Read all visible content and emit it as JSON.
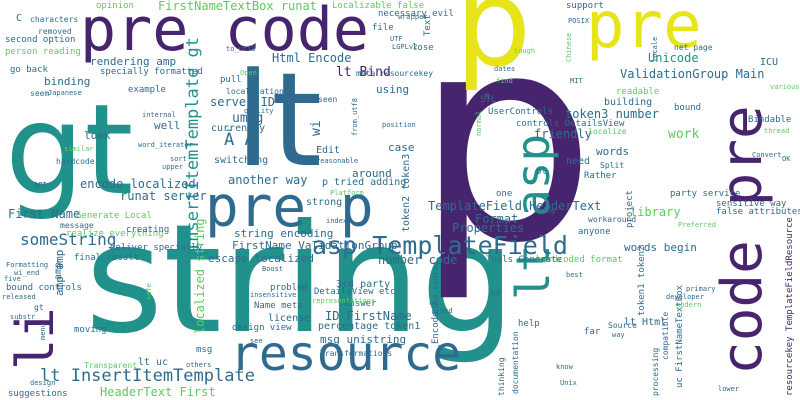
{
  "palette": {
    "purple": "#46256e",
    "teal": "#21918c",
    "blue": "#2f6b8e",
    "green": "#5ec962",
    "lime": "#b5de2b",
    "yellow": "#e8e41a",
    "navy": "#3b4f8a",
    "seafoam": "#2fb47c"
  },
  "words": [
    {
      "text": "string",
      "color": "#21918c"
    },
    {
      "text": "p",
      "color": "#46256e"
    },
    {
      "text": "gt",
      "color": "#21918c"
    },
    {
      "text": "lt",
      "color": "#2f6b8e"
    },
    {
      "text": "p",
      "color": "#e8e41a"
    },
    {
      "text": "pre code",
      "color": "#46256e"
    },
    {
      "text": "resource",
      "color": "#2f6b8e"
    },
    {
      "text": "pre",
      "color": "#e8e41a"
    },
    {
      "text": "pre p",
      "color": "#2f6b8e"
    },
    {
      "text": "code pre",
      "color": "#46256e"
    },
    {
      "text": "lt asp",
      "color": "#21918c"
    },
    {
      "text": "li",
      "color": "#46256e"
    },
    {
      "text": "asp TemplateField",
      "color": "#2f6b8e"
    },
    {
      "text": "lt InsertItemTemplate",
      "color": "#2f6b8e"
    },
    {
      "text": "InsertItemTemplate gt",
      "color": "#21918c"
    },
    {
      "text": "someString",
      "color": "#2f6b8e"
    },
    {
      "text": "FirstNameTextBox runat",
      "color": "#5ec962"
    },
    {
      "text": "Html Encode",
      "color": "#2f6b8e"
    },
    {
      "text": "lt Bind",
      "color": "#46256e"
    },
    {
      "text": "ValidationGroup Main",
      "color": "#2f6b8e"
    },
    {
      "text": "Unicode",
      "color": "#21918c"
    },
    {
      "text": "umsg",
      "color": "#2f6b8e"
    },
    {
      "text": "server ID",
      "color": "#2f6b8e"
    },
    {
      "text": "encode localized",
      "color": "#2f6b8e"
    },
    {
      "text": "runat server",
      "color": "#2f6b8e"
    },
    {
      "text": "another way",
      "color": "#2f6b8e"
    },
    {
      "text": "First Name",
      "color": "#2f6b8e"
    },
    {
      "text": "TemplateField HeaderText",
      "color": "#2f6b8e"
    },
    {
      "text": "Format",
      "color": "#2f6b8e"
    },
    {
      "text": "Properties",
      "color": "#2f6b8e"
    },
    {
      "text": "library",
      "color": "#5ec962"
    },
    {
      "text": "words begin",
      "color": "#2f6b8e"
    },
    {
      "text": "string encoding",
      "color": "#2f6b8e"
    },
    {
      "text": "FirstName ValidationGroup",
      "color": "#2f6b8e"
    },
    {
      "text": "escape localized",
      "color": "#2f6b8e"
    },
    {
      "text": "number code",
      "color": "#2f6b8e"
    },
    {
      "text": "ID FirstName",
      "color": "#2f6b8e"
    },
    {
      "text": "msg unistring",
      "color": "#2f6b8e"
    },
    {
      "text": "percentage token1",
      "color": "#2f6b8e"
    },
    {
      "text": "DetailsView etc",
      "color": "#2f6b8e"
    },
    {
      "text": "Name meta",
      "color": "#2f6b8e"
    },
    {
      "text": "license",
      "color": "#2f6b8e"
    },
    {
      "text": "design view",
      "color": "#2f6b8e"
    },
    {
      "text": "lt uc",
      "color": "#2f6b8e"
    },
    {
      "text": "HeaderText First",
      "color": "#5ec962"
    },
    {
      "text": "token3 number",
      "color": "#2f6b8e"
    },
    {
      "text": "friendly",
      "color": "#2f6b8e"
    },
    {
      "text": "work",
      "color": "#5ec962"
    },
    {
      "text": "words",
      "color": "#2f6b8e"
    },
    {
      "text": "need",
      "color": "#2f6b8e"
    },
    {
      "text": "Rather",
      "color": "#2f6b8e"
    },
    {
      "text": "case",
      "color": "#2f6b8e"
    },
    {
      "text": "Edit",
      "color": "#2f6b8e"
    },
    {
      "text": "around",
      "color": "#2f6b8e"
    },
    {
      "text": "look",
      "color": "#2f6b8e"
    },
    {
      "text": "well",
      "color": "#2f6b8e"
    },
    {
      "text": "binding",
      "color": "#2f6b8e"
    },
    {
      "text": "rendering amp",
      "color": "#2f6b8e"
    },
    {
      "text": "specially formatted",
      "color": "#2f6b8e"
    },
    {
      "text": "example",
      "color": "#2f6b8e"
    },
    {
      "text": "second option",
      "color": "#2f6b8e"
    },
    {
      "text": "person reading",
      "color": "#5ec962"
    },
    {
      "text": "go back",
      "color": "#2f6b8e"
    },
    {
      "text": "seem",
      "color": "#2f6b8e"
    },
    {
      "text": "removed",
      "color": "#2f6b8e"
    },
    {
      "text": "characters",
      "color": "#2f6b8e"
    },
    {
      "text": "opinion",
      "color": "#5ec962"
    },
    {
      "text": "Localizable false",
      "color": "#5ec962"
    },
    {
      "text": "necessary evil",
      "color": "#2f6b8e"
    },
    {
      "text": "support",
      "color": "#2f6b8e"
    },
    {
      "text": "file",
      "color": "#2f6b8e"
    },
    {
      "text": "lose",
      "color": "#2f6b8e"
    },
    {
      "text": "net page",
      "color": "#2f6b8e"
    },
    {
      "text": "ICU",
      "color": "#2f6b8e"
    },
    {
      "text": "using",
      "color": "#2f6b8e"
    },
    {
      "text": "STL",
      "color": "#2f6b8e"
    },
    {
      "text": "readable",
      "color": "#5ec962"
    },
    {
      "text": "building",
      "color": "#2f6b8e"
    },
    {
      "text": "bound",
      "color": "#2f6b8e"
    },
    {
      "text": "Bindable",
      "color": "#2f6b8e"
    },
    {
      "text": "UserControls",
      "color": "#2f6b8e"
    },
    {
      "text": "controls DetailsView",
      "color": "#2f6b8e"
    },
    {
      "text": "localize",
      "color": "#5ec962"
    },
    {
      "text": "currently",
      "color": "#2f6b8e"
    },
    {
      "text": "localization",
      "color": "#2f6b8e"
    },
    {
      "text": "switching",
      "color": "#2f6b8e"
    },
    {
      "text": "pull",
      "color": "#2f6b8e"
    },
    {
      "text": "meta resourcekey",
      "color": "#2f6b8e"
    },
    {
      "text": "Generate Local",
      "color": "#5ec962"
    },
    {
      "text": "realize everything",
      "color": "#5ec962"
    },
    {
      "text": "creating",
      "color": "#2f6b8e"
    },
    {
      "text": "deliver specially",
      "color": "#2f6b8e"
    },
    {
      "text": "final result",
      "color": "#2f6b8e"
    },
    {
      "text": "bound controls",
      "color": "#2f6b8e"
    },
    {
      "text": "message",
      "color": "#2f6b8e"
    },
    {
      "text": "p tried adding",
      "color": "#2f6b8e"
    },
    {
      "text": "strong",
      "color": "#2f6b8e"
    },
    {
      "text": "one",
      "color": "#2f6b8e"
    },
    {
      "text": "ol",
      "color": "#2f6b8e"
    },
    {
      "text": "Split",
      "color": "#2f6b8e"
    },
    {
      "text": "hardcoded format",
      "color": "#5ec962"
    },
    {
      "text": "Tools Generate",
      "color": "#2f6b8e"
    },
    {
      "text": "3rd party",
      "color": "#2f6b8e"
    },
    {
      "text": "problem",
      "color": "#2f6b8e"
    },
    {
      "text": "answer",
      "color": "#2f6b8e"
    },
    {
      "text": "moving",
      "color": "#2f6b8e"
    },
    {
      "text": "msg",
      "color": "#2f6b8e"
    },
    {
      "text": "help",
      "color": "#2f6b8e"
    },
    {
      "text": "hr",
      "color": "#2f6b8e"
    },
    {
      "text": "far",
      "color": "#2f6b8e"
    },
    {
      "text": "lt Html",
      "color": "#2f6b8e"
    },
    {
      "text": "uc FirstNameTextBox",
      "color": "#2f6b8e"
    },
    {
      "text": "token1 token2",
      "color": "#2f6b8e"
    },
    {
      "text": "resourcekey TemplateFieldResource",
      "color": "#46256e"
    },
    {
      "text": "party service",
      "color": "#2f6b8e"
    },
    {
      "text": "sensitive way",
      "color": "#2f6b8e"
    },
    {
      "text": "false attributes",
      "color": "#2f6b8e"
    },
    {
      "text": "anyone",
      "color": "#2f6b8e"
    },
    {
      "text": "workaround",
      "color": "#2f6b8e"
    },
    {
      "text": "project",
      "color": "#2f6b8e"
    },
    {
      "text": "token2 token3",
      "color": "#2f6b8e"
    },
    {
      "text": "Encode Ã",
      "color": "#2f6b8e"
    },
    {
      "text": "Ã Ã",
      "color": "#2f6b8e"
    },
    {
      "text": "Text",
      "color": "#2f6b8e"
    },
    {
      "text": "wi",
      "color": "#2f6b8e"
    },
    {
      "text": "localized string",
      "color": "#5ec962"
    },
    {
      "text": "amp amp",
      "color": "#2f6b8e"
    },
    {
      "text": "Bind syntax",
      "color": "#2f6b8e"
    },
    {
      "text": "suggestions",
      "color": "#2f6b8e"
    },
    {
      "text": "Transformations",
      "color": "#2f6b8e"
    },
    {
      "text": "Transparent",
      "color": "#5ec962"
    },
    {
      "text": "documentation",
      "color": "#2f6b8e"
    },
    {
      "text": "thinking",
      "color": "#2f6b8e"
    },
    {
      "text": "processing",
      "color": "#2f6b8e"
    },
    {
      "text": "compatible",
      "color": "#2f6b8e"
    },
    {
      "text": "Unix",
      "color": "#2f6b8e"
    },
    {
      "text": "know",
      "color": "#2f6b8e"
    },
    {
      "text": "Source",
      "color": "#2f6b8e"
    },
    {
      "text": "way",
      "color": "#2f6b8e"
    },
    {
      "text": "primary",
      "color": "#2f6b8e"
    },
    {
      "text": "developer",
      "color": "#2f6b8e"
    },
    {
      "text": "modern",
      "color": "#5ec962"
    },
    {
      "text": "best",
      "color": "#2f6b8e"
    },
    {
      "text": "lower",
      "color": "#2f6b8e"
    },
    {
      "text": "Convert",
      "color": "#2f6b8e"
    },
    {
      "text": "OK",
      "color": "#2f6b8e"
    },
    {
      "text": "thread",
      "color": "#5ec962"
    },
    {
      "text": "Preferred",
      "color": "#5ec962"
    },
    {
      "text": "hardcode",
      "color": "#2f6b8e"
    },
    {
      "text": "similar",
      "color": "#5ec962"
    },
    {
      "text": "API",
      "color": "#2f6b8e"
    },
    {
      "text": "Japanese",
      "color": "#2f6b8e"
    },
    {
      "text": "internal",
      "color": "#2f6b8e"
    },
    {
      "text": "word_iterator",
      "color": "#2f6b8e"
    },
    {
      "text": "sort",
      "color": "#2f6b8e"
    },
    {
      "text": "upper",
      "color": "#2f6b8e"
    },
    {
      "text": "Formatting",
      "color": "#2f6b8e"
    },
    {
      "text": "wi_end",
      "color": "#2f6b8e"
    },
    {
      "text": "five",
      "color": "#2f6b8e"
    },
    {
      "text": "released",
      "color": "#2f6b8e"
    },
    {
      "text": "substr",
      "color": "#2f6b8e"
    },
    {
      "text": "menu",
      "color": "#2f6b8e"
    },
    {
      "text": "design",
      "color": "#2f6b8e"
    },
    {
      "text": "others",
      "color": "#2f6b8e"
    },
    {
      "text": "see",
      "color": "#2f6b8e"
    },
    {
      "text": "insensitive",
      "color": "#2f6b8e"
    },
    {
      "text": "Boost",
      "color": "#2f6b8e"
    },
    {
      "text": "representations",
      "color": "#5ec962"
    },
    {
      "text": "std",
      "color": "#2f6b8e"
    },
    {
      "text": "index",
      "color": "#2f6b8e"
    },
    {
      "text": "Platform",
      "color": "#5ec962"
    },
    {
      "text": "using",
      "color": "#2f6b8e"
    },
    {
      "text": "reasonable",
      "color": "#2f6b8e"
    },
    {
      "text": "position",
      "color": "#2f6b8e"
    },
    {
      "text": "from_utf8",
      "color": "#2f6b8e"
    },
    {
      "text": "normal",
      "color": "#5ec962"
    },
    {
      "text": "quality",
      "color": "#2f6b8e"
    },
    {
      "text": "to_utf8",
      "color": "#2f6b8e"
    },
    {
      "text": "Open",
      "color": "#5ec962"
    },
    {
      "text": "UTF",
      "color": "#2f6b8e"
    },
    {
      "text": "LGPLv2",
      "color": "#2f6b8e"
    },
    {
      "text": "wrapper",
      "color": "#2f6b8e"
    },
    {
      "text": "POSIX",
      "color": "#2f6b8e"
    },
    {
      "text": "Chinese",
      "color": "#5ec962"
    },
    {
      "text": "locale",
      "color": "#2f6b8e"
    },
    {
      "text": "dates",
      "color": "#2f6b8e"
    },
    {
      "text": "find",
      "color": "#5ec962"
    },
    {
      "text": "MIT",
      "color": "#2f6b8e"
    },
    {
      "text": "various",
      "color": "#5ec962"
    },
    {
      "text": "tough",
      "color": "#5ec962"
    },
    {
      "text": "safe",
      "color": "#5ec962"
    },
    {
      "text": "seen",
      "color": "#2f6b8e"
    },
    {
      "text": "C",
      "color": "#2f6b8e"
    },
    {
      "text": "n",
      "color": "#2f6b8e"
    },
    {
      "text": "gt",
      "color": "#2f6b8e"
    },
    {
      "text": "amp",
      "color": "#2f6b8e"
    }
  ]
}
